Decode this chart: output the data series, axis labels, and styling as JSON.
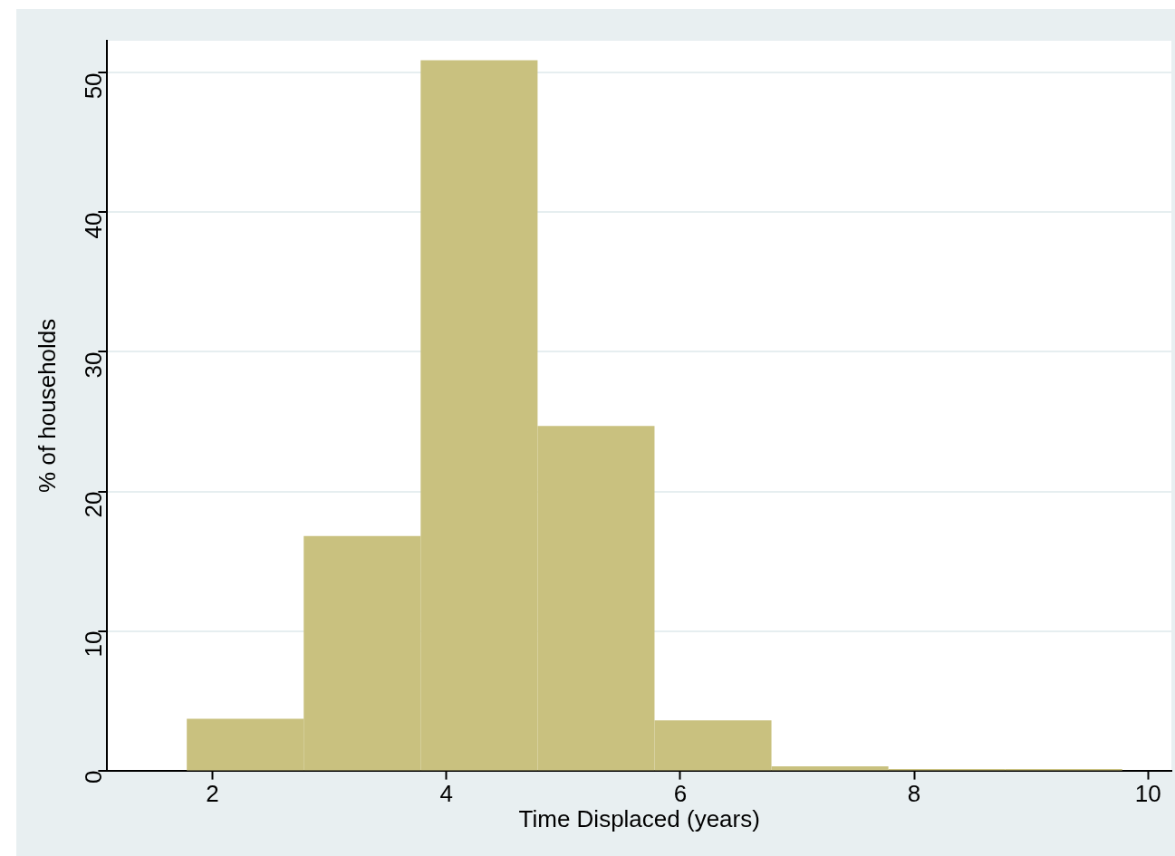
{
  "chart_data": {
    "type": "histogram",
    "xlabel": "Time Displaced (years)",
    "ylabel": "% of households",
    "bins": [
      1.78,
      2.78,
      3.78,
      4.78,
      5.78,
      6.78,
      7.78,
      8.78,
      9.78
    ],
    "values": [
      3.7,
      16.8,
      50.9,
      24.7,
      3.6,
      0.3,
      0.1,
      0.1
    ],
    "color": "#c9c17f",
    "xlim": [
      1.1,
      10.2
    ],
    "xticks": [
      2,
      4,
      6,
      8,
      10
    ],
    "ylim": [
      0,
      52.3
    ],
    "yticks": [
      0,
      10,
      20,
      30,
      40,
      50
    ],
    "grid": "y",
    "legend": false
  }
}
